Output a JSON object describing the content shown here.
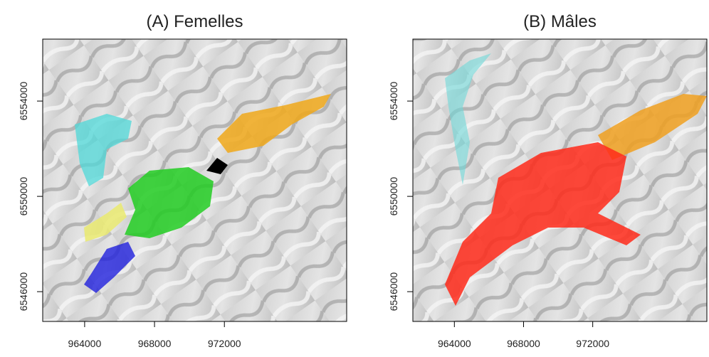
{
  "panels": [
    {
      "title": "(A) Femelles",
      "xlim": [
        961600,
        979000
      ],
      "ylim": [
        6544750,
        6556600
      ],
      "xticks": [
        964000,
        968000,
        972000
      ],
      "yticks": [
        6546000,
        6550000,
        6554000
      ]
    },
    {
      "title": "(B) Mâles",
      "xlim": [
        961600,
        978600
      ],
      "ylim": [
        6544750,
        6556600
      ],
      "xticks": [
        964000,
        968000,
        972000
      ],
      "yticks": [
        6546000,
        6550000,
        6554000
      ]
    }
  ]
}
